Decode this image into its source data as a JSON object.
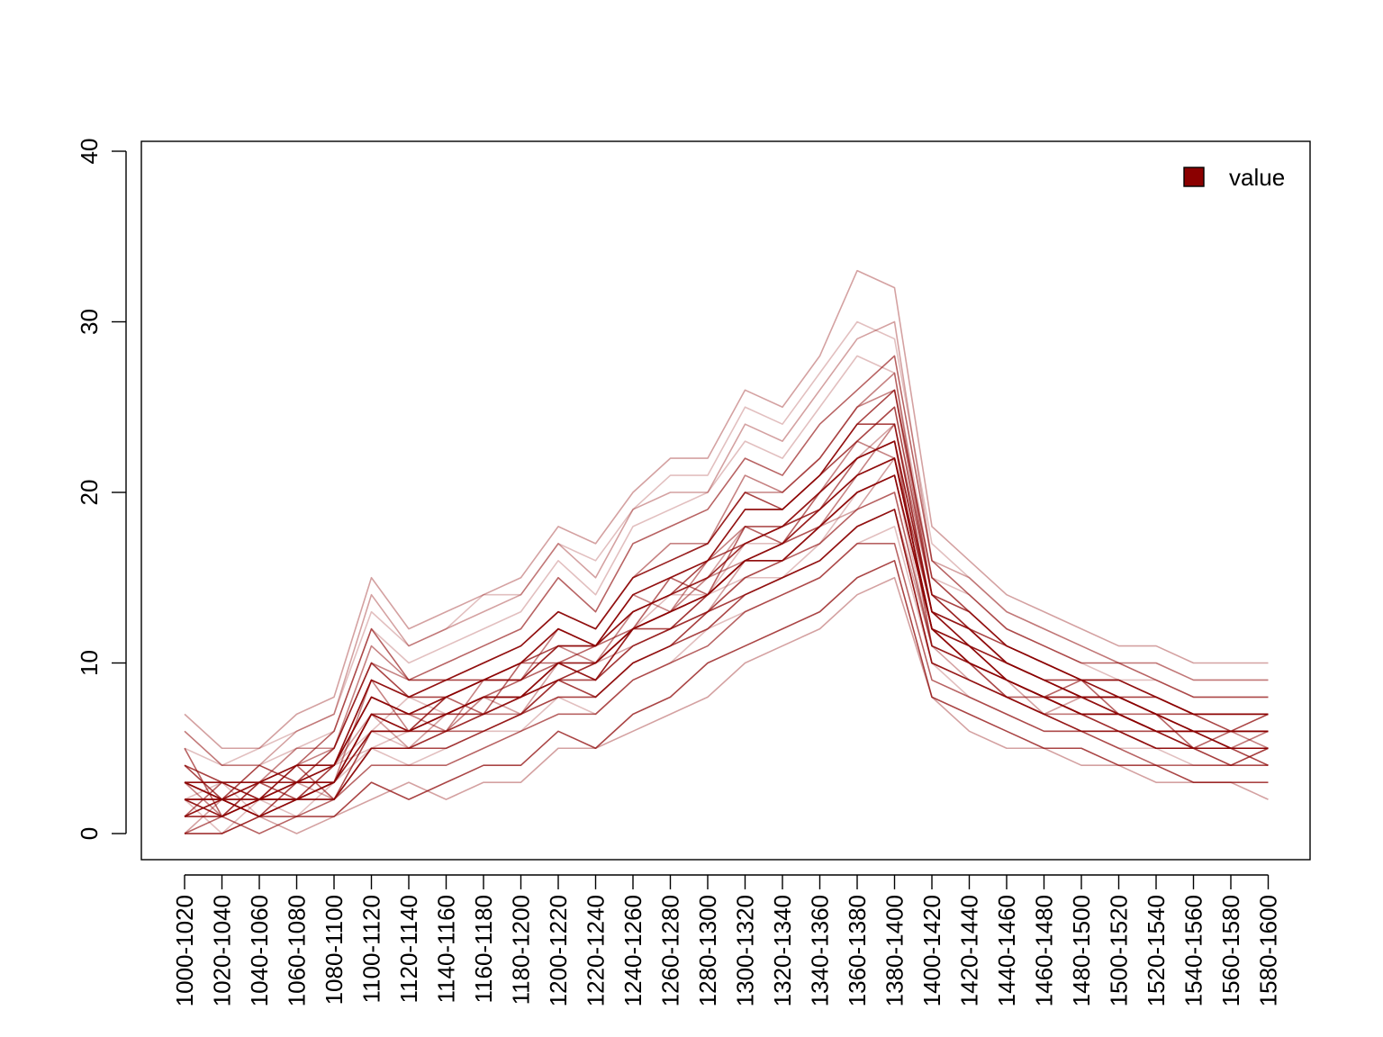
{
  "chart_data": {
    "type": "line",
    "title": "",
    "xlabel": "",
    "ylabel": "",
    "categories": [
      "1000-1020",
      "1020-1040",
      "1040-1060",
      "1060-1080",
      "1080-1100",
      "1100-1120",
      "1120-1140",
      "1140-1160",
      "1160-1180",
      "1180-1200",
      "1200-1220",
      "1220-1240",
      "1240-1260",
      "1260-1280",
      "1280-1300",
      "1300-1320",
      "1320-1340",
      "1340-1360",
      "1360-1380",
      "1380-1400",
      "1400-1420",
      "1420-1440",
      "1440-1460",
      "1460-1480",
      "1480-1500",
      "1500-1520",
      "1520-1540",
      "1540-1560",
      "1560-1580",
      "1580-1600"
    ],
    "ylim": [
      0,
      40
    ],
    "yticks": [
      0,
      10,
      20,
      30,
      40
    ],
    "ytick_labels": [
      "0",
      "10",
      "20",
      "30",
      "40"
    ],
    "grid": false,
    "legend": {
      "position": "top-right",
      "entries": [
        {
          "label": "value",
          "color": "#8B0000"
        }
      ]
    },
    "color": "#8B0000",
    "series": [
      {
        "values": [
          2,
          1,
          2,
          3,
          4,
          5,
          6,
          6,
          7,
          8,
          9,
          9,
          11,
          12,
          13,
          15,
          16,
          17,
          20,
          21,
          12,
          10,
          8,
          8,
          7,
          6,
          6,
          5,
          5,
          5
        ]
      },
      {
        "values": [
          0,
          2,
          1,
          2,
          3,
          7,
          5,
          7,
          8,
          7,
          10,
          9,
          12,
          13,
          14,
          16,
          17,
          18,
          19,
          22,
          13,
          11,
          9,
          7,
          8,
          7,
          6,
          6,
          5,
          6
        ]
      },
      {
        "values": [
          3,
          1,
          3,
          2,
          4,
          8,
          7,
          6,
          9,
          9,
          11,
          10,
          13,
          14,
          15,
          17,
          18,
          19,
          21,
          24,
          14,
          12,
          10,
          9,
          8,
          8,
          7,
          6,
          6,
          5
        ]
      },
      {
        "values": [
          1,
          3,
          2,
          4,
          2,
          6,
          6,
          8,
          7,
          10,
          10,
          11,
          12,
          15,
          14,
          18,
          17,
          20,
          22,
          23,
          11,
          10,
          9,
          8,
          9,
          7,
          7,
          5,
          6,
          6
        ]
      },
      {
        "values": [
          4,
          2,
          1,
          3,
          5,
          10,
          8,
          9,
          10,
          11,
          13,
          12,
          15,
          16,
          17,
          20,
          19,
          21,
          24,
          26,
          15,
          13,
          11,
          10,
          9,
          9,
          8,
          7,
          7,
          7
        ]
      },
      {
        "values": [
          2,
          0,
          2,
          1,
          3,
          5,
          4,
          5,
          6,
          6,
          8,
          7,
          9,
          10,
          12,
          13,
          14,
          15,
          17,
          18,
          10,
          8,
          7,
          6,
          6,
          5,
          5,
          4,
          4,
          4
        ]
      },
      {
        "values": [
          1,
          2,
          3,
          2,
          4,
          7,
          7,
          7,
          8,
          8,
          9,
          10,
          11,
          12,
          13,
          16,
          16,
          18,
          20,
          21,
          12,
          11,
          9,
          8,
          7,
          7,
          6,
          6,
          5,
          5
        ]
      },
      {
        "values": [
          3,
          2,
          2,
          3,
          3,
          9,
          6,
          8,
          9,
          9,
          12,
          11,
          14,
          13,
          16,
          18,
          18,
          20,
          23,
          22,
          13,
          12,
          10,
          9,
          8,
          8,
          7,
          6,
          6,
          6
        ]
      },
      {
        "values": [
          5,
          1,
          3,
          4,
          6,
          12,
          9,
          10,
          11,
          12,
          15,
          13,
          17,
          18,
          19,
          22,
          21,
          24,
          26,
          28,
          16,
          14,
          12,
          11,
          10,
          10,
          9,
          8,
          8,
          8
        ]
      },
      {
        "values": [
          0,
          0,
          1,
          1,
          1,
          3,
          2,
          3,
          4,
          4,
          6,
          5,
          7,
          8,
          10,
          11,
          12,
          13,
          15,
          16,
          8,
          7,
          6,
          5,
          5,
          4,
          4,
          3,
          3,
          3
        ]
      },
      {
        "values": [
          2,
          3,
          1,
          2,
          4,
          6,
          8,
          7,
          8,
          9,
          10,
          10,
          12,
          14,
          14,
          17,
          17,
          19,
          21,
          22,
          12,
          11,
          9,
          8,
          8,
          7,
          6,
          6,
          5,
          6
        ]
      },
      {
        "values": [
          1,
          1,
          2,
          3,
          2,
          5,
          5,
          6,
          7,
          7,
          9,
          8,
          10,
          11,
          13,
          14,
          15,
          16,
          18,
          19,
          11,
          9,
          8,
          7,
          7,
          6,
          5,
          5,
          4,
          5
        ]
      },
      {
        "values": [
          4,
          3,
          3,
          5,
          5,
          11,
          9,
          9,
          10,
          11,
          13,
          12,
          15,
          17,
          17,
          21,
          20,
          22,
          25,
          27,
          14,
          13,
          11,
          10,
          9,
          9,
          8,
          7,
          7,
          7
        ]
      },
      {
        "values": [
          2,
          1,
          2,
          2,
          3,
          7,
          6,
          7,
          8,
          8,
          10,
          9,
          12,
          13,
          14,
          16,
          16,
          18,
          20,
          21,
          12,
          10,
          9,
          8,
          7,
          7,
          6,
          5,
          5,
          5
        ]
      },
      {
        "values": [
          3,
          2,
          4,
          3,
          4,
          8,
          7,
          8,
          9,
          10,
          11,
          11,
          13,
          14,
          16,
          17,
          18,
          20,
          22,
          23,
          13,
          11,
          10,
          9,
          8,
          8,
          7,
          6,
          6,
          6
        ]
      },
      {
        "values": [
          1,
          2,
          1,
          2,
          2,
          6,
          5,
          6,
          7,
          7,
          9,
          9,
          11,
          12,
          13,
          15,
          15,
          17,
          19,
          20,
          11,
          10,
          8,
          7,
          7,
          6,
          6,
          5,
          5,
          5
        ]
      },
      {
        "values": [
          6,
          4,
          4,
          6,
          7,
          14,
          11,
          12,
          13,
          14,
          17,
          15,
          19,
          20,
          20,
          24,
          23,
          26,
          29,
          30,
          16,
          15,
          13,
          12,
          11,
          10,
          10,
          9,
          9,
          9
        ]
      },
      {
        "values": [
          2,
          2,
          3,
          3,
          3,
          7,
          7,
          7,
          8,
          9,
          10,
          10,
          12,
          13,
          15,
          16,
          17,
          19,
          21,
          22,
          12,
          11,
          9,
          8,
          8,
          7,
          6,
          6,
          6,
          6
        ]
      },
      {
        "values": [
          0,
          1,
          0,
          1,
          2,
          4,
          4,
          4,
          5,
          6,
          7,
          7,
          9,
          10,
          11,
          13,
          14,
          15,
          17,
          17,
          9,
          8,
          7,
          6,
          6,
          5,
          4,
          4,
          4,
          4
        ]
      },
      {
        "values": [
          3,
          3,
          2,
          4,
          4,
          9,
          8,
          9,
          9,
          10,
          12,
          11,
          14,
          15,
          16,
          19,
          19,
          21,
          23,
          25,
          14,
          12,
          11,
          10,
          9,
          8,
          8,
          7,
          7,
          7
        ]
      },
      {
        "values": [
          2,
          1,
          2,
          2,
          3,
          6,
          6,
          7,
          7,
          8,
          10,
          9,
          11,
          12,
          14,
          15,
          16,
          18,
          20,
          21,
          11,
          10,
          9,
          8,
          7,
          7,
          6,
          5,
          5,
          5
        ]
      },
      {
        "values": [
          7,
          5,
          5,
          7,
          8,
          15,
          12,
          13,
          14,
          15,
          18,
          17,
          20,
          22,
          22,
          26,
          25,
          28,
          33,
          32,
          18,
          16,
          14,
          13,
          12,
          11,
          11,
          10,
          10,
          10
        ]
      },
      {
        "values": [
          1,
          2,
          2,
          3,
          3,
          7,
          6,
          6,
          8,
          8,
          10,
          9,
          12,
          13,
          14,
          16,
          17,
          18,
          21,
          22,
          12,
          10,
          9,
          8,
          7,
          7,
          6,
          6,
          5,
          5
        ]
      },
      {
        "values": [
          3,
          2,
          3,
          3,
          4,
          8,
          7,
          8,
          9,
          9,
          11,
          11,
          13,
          14,
          15,
          17,
          18,
          19,
          22,
          23,
          13,
          11,
          10,
          9,
          8,
          8,
          7,
          6,
          6,
          6
        ]
      },
      {
        "values": [
          2,
          2,
          1,
          2,
          3,
          6,
          6,
          7,
          7,
          8,
          9,
          10,
          12,
          12,
          14,
          16,
          16,
          18,
          20,
          21,
          12,
          10,
          9,
          8,
          7,
          7,
          6,
          6,
          5,
          5
        ]
      },
      {
        "values": [
          5,
          4,
          4,
          5,
          6,
          12,
          10,
          11,
          12,
          13,
          16,
          14,
          18,
          19,
          20,
          23,
          22,
          25,
          28,
          27,
          15,
          14,
          12,
          11,
          10,
          9,
          9,
          8,
          8,
          8
        ]
      },
      {
        "values": [
          0,
          0,
          1,
          0,
          1,
          2,
          3,
          2,
          3,
          3,
          5,
          5,
          6,
          7,
          8,
          10,
          11,
          12,
          14,
          15,
          8,
          6,
          5,
          5,
          4,
          4,
          3,
          3,
          3,
          2
        ]
      },
      {
        "values": [
          4,
          3,
          3,
          4,
          5,
          10,
          9,
          9,
          10,
          11,
          13,
          12,
          15,
          16,
          17,
          20,
          20,
          22,
          25,
          26,
          14,
          13,
          11,
          10,
          9,
          9,
          8,
          7,
          7,
          7
        ]
      },
      {
        "values": [
          2,
          2,
          2,
          3,
          3,
          7,
          6,
          7,
          8,
          8,
          10,
          10,
          12,
          13,
          14,
          16,
          17,
          19,
          21,
          22,
          12,
          11,
          9,
          8,
          8,
          7,
          6,
          6,
          6,
          6
        ]
      },
      {
        "values": [
          1,
          1,
          2,
          2,
          2,
          5,
          5,
          5,
          6,
          7,
          8,
          8,
          10,
          11,
          12,
          14,
          15,
          16,
          18,
          19,
          10,
          9,
          8,
          7,
          6,
          6,
          5,
          5,
          5,
          4
        ]
      },
      {
        "values": [
          6,
          4,
          5,
          6,
          7,
          13,
          11,
          12,
          14,
          14,
          17,
          16,
          19,
          21,
          21,
          25,
          24,
          27,
          30,
          29,
          17,
          15,
          13,
          12,
          11,
          10,
          10,
          9,
          9,
          9
        ]
      },
      {
        "values": [
          3,
          2,
          3,
          3,
          4,
          8,
          7,
          8,
          9,
          9,
          11,
          11,
          13,
          14,
          15,
          18,
          18,
          20,
          22,
          24,
          13,
          12,
          10,
          9,
          8,
          8,
          7,
          6,
          6,
          6
        ]
      },
      {
        "values": [
          2,
          1,
          2,
          2,
          3,
          6,
          6,
          6,
          7,
          8,
          9,
          9,
          11,
          12,
          13,
          15,
          16,
          17,
          19,
          20,
          11,
          10,
          8,
          8,
          7,
          6,
          6,
          5,
          5,
          5
        ]
      },
      {
        "values": [
          1,
          2,
          1,
          2,
          2,
          5,
          5,
          6,
          6,
          7,
          9,
          8,
          10,
          11,
          13,
          14,
          15,
          16,
          18,
          19,
          10,
          9,
          8,
          7,
          6,
          6,
          5,
          5,
          4,
          5
        ]
      },
      {
        "values": [
          3,
          3,
          3,
          4,
          4,
          9,
          8,
          8,
          9,
          10,
          12,
          11,
          14,
          15,
          16,
          19,
          19,
          21,
          24,
          24,
          13,
          12,
          10,
          9,
          9,
          8,
          7,
          7,
          6,
          7
        ]
      },
      {
        "values": [
          2,
          2,
          2,
          2,
          3,
          7,
          6,
          7,
          8,
          8,
          10,
          10,
          12,
          13,
          14,
          16,
          17,
          19,
          21,
          22,
          12,
          11,
          9,
          8,
          8,
          7,
          6,
          6,
          6,
          6
        ]
      }
    ]
  }
}
